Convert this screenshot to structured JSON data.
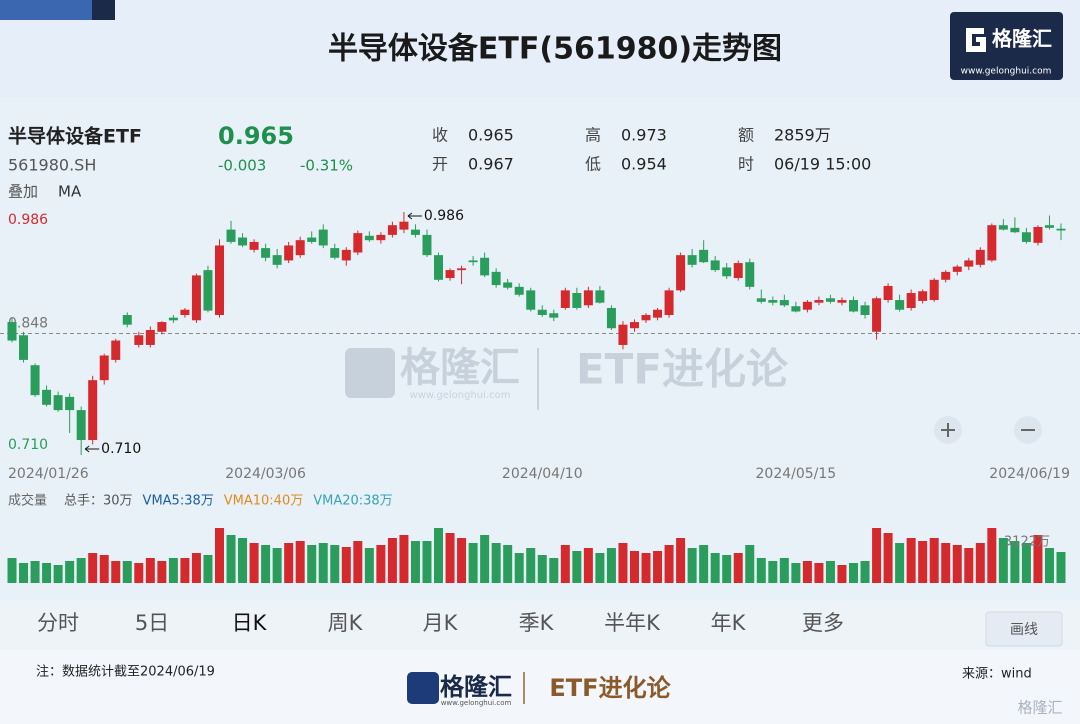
{
  "header": {
    "title": "半导体设备ETF(561980)走势图",
    "brand": "格隆汇",
    "url": "www.gelonghui.com"
  },
  "quote": {
    "name": "半导体设备ETF",
    "code": "561980.SH",
    "price": "0.965",
    "change": "-0.003",
    "change_pct": "-0.31%",
    "overlay": "叠加",
    "indicator": "MA",
    "fields": [
      {
        "label": "收",
        "value": "0.965"
      },
      {
        "label": "开",
        "value": "0.967"
      },
      {
        "label": "高",
        "value": "0.973"
      },
      {
        "label": "低",
        "value": "0.954"
      },
      {
        "label": "额",
        "value": "2859万"
      },
      {
        "label": "时",
        "value": "06/19 15:00"
      }
    ]
  },
  "chart_data": [
    {
      "type": "candlestick",
      "categories": [
        "2024/01/26",
        null,
        null,
        null,
        null,
        null,
        null,
        null,
        null,
        null,
        null,
        null,
        null,
        null,
        null,
        null,
        null,
        null,
        null,
        null,
        null,
        null,
        "2024/03/06",
        null,
        null,
        null,
        null,
        null,
        null,
        null,
        null,
        null,
        null,
        null,
        null,
        null,
        null,
        null,
        null,
        null,
        null,
        null,
        null,
        null,
        null,
        null,
        "2024/04/10",
        null,
        null,
        null,
        null,
        null,
        null,
        null,
        null,
        null,
        null,
        null,
        null,
        null,
        null,
        null,
        null,
        null,
        null,
        null,
        null,
        null,
        "2024/05/15",
        null,
        null,
        null,
        null,
        null,
        null,
        null,
        null,
        null,
        null,
        null,
        null,
        null,
        null,
        null,
        null,
        null,
        null,
        null,
        null,
        null,
        null,
        "2024/06/19"
      ],
      "open": [
        0.861,
        0.846,
        0.812,
        0.784,
        0.778,
        0.776,
        0.761,
        0.727,
        0.795,
        0.818,
        0.869,
        0.835,
        0.835,
        0.85,
        0.866,
        0.869,
        0.863,
        0.92,
        0.869,
        0.966,
        0.957,
        0.943,
        0.945,
        0.937,
        0.931,
        0.937,
        0.957,
        0.966,
        0.945,
        0.931,
        0.94,
        0.959,
        0.954,
        0.96,
        0.966,
        0.966,
        0.96,
        0.937,
        0.911,
        0.92,
        0.931,
        0.934,
        0.918,
        0.906,
        0.901,
        0.897,
        0.875,
        0.871,
        0.877,
        0.894,
        0.88,
        0.897,
        0.877,
        0.835,
        0.854,
        0.863,
        0.866,
        0.869,
        0.897,
        0.937,
        0.943,
        0.931,
        0.923,
        0.911,
        0.929,
        0.888,
        0.886,
        0.886,
        0.879,
        0.875,
        0.883,
        0.888,
        0.883,
        0.886,
        0.88,
        0.85,
        0.886,
        0.886,
        0.877,
        0.885,
        0.886,
        0.909,
        0.918,
        0.924,
        0.926,
        0.931,
        0.971,
        0.968,
        0.963,
        0.951,
        0.971,
        0.967
      ],
      "high": [
        0.866,
        0.85,
        0.814,
        0.789,
        0.782,
        0.78,
        0.765,
        0.8,
        0.825,
        0.842,
        0.872,
        0.85,
        0.856,
        0.862,
        0.869,
        0.877,
        0.916,
        0.925,
        0.955,
        0.976,
        0.962,
        0.955,
        0.95,
        0.944,
        0.952,
        0.958,
        0.964,
        0.972,
        0.95,
        0.946,
        0.965,
        0.964,
        0.963,
        0.975,
        0.986,
        0.972,
        0.966,
        0.94,
        0.922,
        0.925,
        0.936,
        0.94,
        0.922,
        0.91,
        0.905,
        0.9,
        0.88,
        0.875,
        0.9,
        0.9,
        0.901,
        0.902,
        0.88,
        0.862,
        0.864,
        0.871,
        0.877,
        0.9,
        0.94,
        0.944,
        0.954,
        0.936,
        0.928,
        0.931,
        0.933,
        0.898,
        0.89,
        0.892,
        0.884,
        0.886,
        0.89,
        0.892,
        0.889,
        0.89,
        0.884,
        0.89,
        0.905,
        0.892,
        0.898,
        0.898,
        0.911,
        0.92,
        0.926,
        0.934,
        0.946,
        0.973,
        0.978,
        0.98,
        0.968,
        0.971,
        0.982,
        0.973
      ],
      "low": [
        0.838,
        0.815,
        0.776,
        0.765,
        0.759,
        0.735,
        0.71,
        0.722,
        0.79,
        0.815,
        0.855,
        0.832,
        0.832,
        0.847,
        0.86,
        0.866,
        0.86,
        0.872,
        0.866,
        0.95,
        0.946,
        0.94,
        0.93,
        0.922,
        0.928,
        0.934,
        0.95,
        0.945,
        0.932,
        0.925,
        0.937,
        0.952,
        0.95,
        0.957,
        0.962,
        0.957,
        0.935,
        0.907,
        0.908,
        0.904,
        0.925,
        0.912,
        0.9,
        0.898,
        0.89,
        0.873,
        0.867,
        0.862,
        0.875,
        0.875,
        0.877,
        0.882,
        0.852,
        0.83,
        0.85,
        0.86,
        0.863,
        0.866,
        0.895,
        0.923,
        0.928,
        0.918,
        0.91,
        0.908,
        0.898,
        0.882,
        0.88,
        0.878,
        0.872,
        0.872,
        0.88,
        0.882,
        0.88,
        0.872,
        0.865,
        0.841,
        0.883,
        0.873,
        0.874,
        0.882,
        0.884,
        0.906,
        0.914,
        0.92,
        0.923,
        0.929,
        0.965,
        0.962,
        0.95,
        0.948,
        0.966,
        0.954
      ],
      "close": [
        0.84,
        0.818,
        0.778,
        0.767,
        0.761,
        0.761,
        0.727,
        0.795,
        0.823,
        0.84,
        0.858,
        0.846,
        0.852,
        0.861,
        0.863,
        0.875,
        0.914,
        0.874,
        0.948,
        0.952,
        0.948,
        0.952,
        0.934,
        0.926,
        0.948,
        0.954,
        0.952,
        0.948,
        0.934,
        0.943,
        0.962,
        0.954,
        0.96,
        0.971,
        0.975,
        0.96,
        0.937,
        0.909,
        0.92,
        0.922,
        0.929,
        0.914,
        0.903,
        0.9,
        0.892,
        0.875,
        0.869,
        0.866,
        0.897,
        0.877,
        0.897,
        0.883,
        0.854,
        0.858,
        0.861,
        0.869,
        0.875,
        0.897,
        0.937,
        0.926,
        0.929,
        0.92,
        0.913,
        0.928,
        0.901,
        0.884,
        0.883,
        0.88,
        0.873,
        0.884,
        0.886,
        0.884,
        0.886,
        0.873,
        0.869,
        0.888,
        0.902,
        0.875,
        0.894,
        0.896,
        0.909,
        0.918,
        0.924,
        0.931,
        0.943,
        0.971,
        0.966,
        0.963,
        0.952,
        0.969,
        0.968,
        0.965
      ],
      "up_color": "#d42a2e",
      "down_color": "#2a9d5c",
      "ylim": [
        0.71,
        0.986
      ],
      "yticks": [
        0.986,
        0.848,
        {
          "value": 0.71,
          "label": "0.710"
        }
      ],
      "max_label": "0.986",
      "min_label": "0.710"
    },
    {
      "type": "bar",
      "title": "成交量",
      "legend": [
        {
          "text": "总手：30万",
          "color": "#555555"
        },
        {
          "text": "VMA5:38万",
          "color": "#1a5fa0"
        },
        {
          "text": "VMA10:40万",
          "color": "#e08a1e"
        },
        {
          "text": "VMA20:38万",
          "color": "#35a3b5"
        }
      ],
      "values": [
        2500,
        2000,
        2200,
        2000,
        1800,
        2200,
        2500,
        3000,
        2800,
        2200,
        2200,
        2000,
        2500,
        2200,
        2500,
        2500,
        3000,
        2800,
        5500,
        4800,
        4500,
        4000,
        3800,
        3500,
        4000,
        4200,
        3800,
        4000,
        3800,
        3600,
        4200,
        3500,
        3800,
        4500,
        4800,
        4200,
        4200,
        5500,
        5000,
        4500,
        4000,
        4800,
        4000,
        3800,
        3000,
        3500,
        2800,
        2500,
        3800,
        3200,
        3500,
        3000,
        3500,
        4000,
        3200,
        3000,
        3200,
        3800,
        4500,
        3500,
        3800,
        3000,
        2800,
        3000,
        3800,
        2500,
        2200,
        2500,
        2000,
        2200,
        2000,
        2200,
        1800,
        2000,
        2200,
        5500,
        5000,
        4000,
        4500,
        4200,
        4500,
        4000,
        3800,
        3500,
        4000,
        5500,
        4500,
        4200,
        4000,
        4800,
        3500,
        3100
      ],
      "ylim": [
        0,
        7500
      ],
      "annotation": "3122万"
    }
  ],
  "tabs": [
    "分时",
    "5日",
    "日K",
    "周K",
    "月K",
    "季K",
    "半年K",
    "年K",
    "更多"
  ],
  "draw_button": "画线",
  "watermark": {
    "slogan": "ETF进化论"
  },
  "footer": {
    "note": "注：数据统计截至2024/06/19",
    "source": "来源：wind"
  }
}
